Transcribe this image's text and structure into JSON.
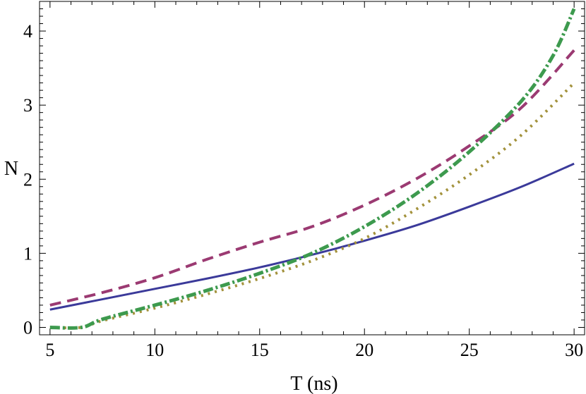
{
  "chart_data": {
    "type": "line",
    "title": "",
    "xlabel": "T (ns)",
    "ylabel": "N",
    "xlim": [
      4.5,
      30.5
    ],
    "ylim": [
      -0.1,
      4.4
    ],
    "xticks": [
      5,
      10,
      15,
      20,
      25,
      30
    ],
    "yticks": [
      0,
      1,
      2,
      3,
      4
    ],
    "grid": false,
    "legend": "none",
    "series": [
      {
        "style": "solid",
        "color": "#3b3a9a",
        "points": [
          [
            5,
            0.24
          ],
          [
            7.5,
            0.38
          ],
          [
            10,
            0.52
          ],
          [
            12.5,
            0.66
          ],
          [
            15,
            0.81
          ],
          [
            17.5,
            0.98
          ],
          [
            20,
            1.17
          ],
          [
            22.5,
            1.38
          ],
          [
            25,
            1.63
          ],
          [
            27.5,
            1.9
          ],
          [
            30,
            2.21
          ]
        ]
      },
      {
        "style": "dashed",
        "color": "#9b3a72",
        "points": [
          [
            5,
            0.3
          ],
          [
            7.5,
            0.47
          ],
          [
            10,
            0.67
          ],
          [
            12.5,
            0.92
          ],
          [
            15,
            1.15
          ],
          [
            17.5,
            1.36
          ],
          [
            20,
            1.65
          ],
          [
            22.5,
            2.01
          ],
          [
            25,
            2.45
          ],
          [
            27.5,
            2.97
          ],
          [
            30,
            3.74
          ]
        ]
      },
      {
        "style": "dotted",
        "color": "#a3923c",
        "points": [
          [
            5,
            0.0
          ],
          [
            6.5,
            0.0
          ],
          [
            7.5,
            0.09
          ],
          [
            10,
            0.26
          ],
          [
            12.5,
            0.45
          ],
          [
            15,
            0.66
          ],
          [
            17.5,
            0.9
          ],
          [
            20,
            1.2
          ],
          [
            22.5,
            1.6
          ],
          [
            25,
            2.06
          ],
          [
            27.5,
            2.6
          ],
          [
            30,
            3.3
          ]
        ]
      },
      {
        "style": "dash-dot",
        "color": "#3d9a4e",
        "points": [
          [
            5,
            0.0
          ],
          [
            6.5,
            0.0
          ],
          [
            7.5,
            0.11
          ],
          [
            10,
            0.3
          ],
          [
            12.5,
            0.5
          ],
          [
            15,
            0.73
          ],
          [
            17.5,
            1.0
          ],
          [
            20,
            1.36
          ],
          [
            22.5,
            1.81
          ],
          [
            25,
            2.37
          ],
          [
            27.5,
            3.06
          ],
          [
            29,
            3.67
          ],
          [
            30,
            4.3
          ]
        ]
      }
    ]
  }
}
